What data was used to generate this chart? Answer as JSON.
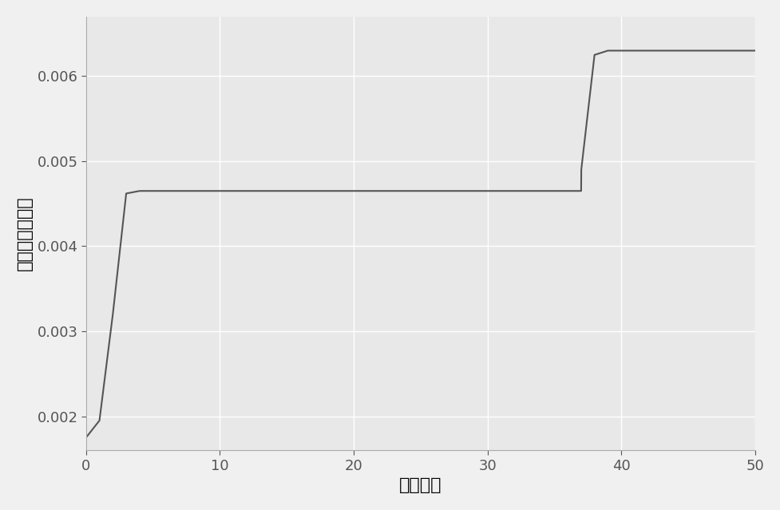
{
  "title": "",
  "xlabel": "迭代次数",
  "ylabel": "最优个体适用值",
  "background_color": "#E8E8E8",
  "line_color": "#555555",
  "line_width": 1.5,
  "grid_color": "#FFFFFF",
  "xlim": [
    0,
    50
  ],
  "ylim": [
    0.0016,
    0.0067
  ],
  "xticks": [
    0,
    10,
    20,
    30,
    40,
    50
  ],
  "yticks": [
    0.002,
    0.003,
    0.004,
    0.005,
    0.006
  ],
  "x": [
    0,
    1,
    2,
    3,
    4,
    5,
    6,
    7,
    8,
    9,
    10,
    11,
    12,
    13,
    14,
    15,
    16,
    17,
    18,
    19,
    20,
    21,
    22,
    23,
    24,
    25,
    26,
    27,
    28,
    29,
    30,
    31,
    32,
    33,
    34,
    35,
    36,
    37,
    37.01,
    38,
    39,
    40,
    41,
    42,
    43,
    44,
    45,
    46,
    47,
    48,
    49,
    50
  ],
  "y": [
    0.00175,
    0.00195,
    0.0032,
    0.00462,
    0.00465,
    0.00465,
    0.00465,
    0.00465,
    0.00465,
    0.00465,
    0.00465,
    0.00465,
    0.00465,
    0.00465,
    0.00465,
    0.00465,
    0.00465,
    0.00465,
    0.00465,
    0.00465,
    0.00465,
    0.00465,
    0.00465,
    0.00465,
    0.00465,
    0.00465,
    0.00465,
    0.00465,
    0.00465,
    0.00465,
    0.00465,
    0.00465,
    0.00465,
    0.00465,
    0.00465,
    0.00465,
    0.00465,
    0.00465,
    0.0049,
    0.00625,
    0.0063,
    0.0063,
    0.0063,
    0.0063,
    0.0063,
    0.0063,
    0.0063,
    0.0063,
    0.0063,
    0.0063,
    0.0063,
    0.0063
  ],
  "xlabel_fontsize": 16,
  "ylabel_fontsize": 16,
  "tick_fontsize": 13,
  "figure_facecolor": "#F0F0F0"
}
